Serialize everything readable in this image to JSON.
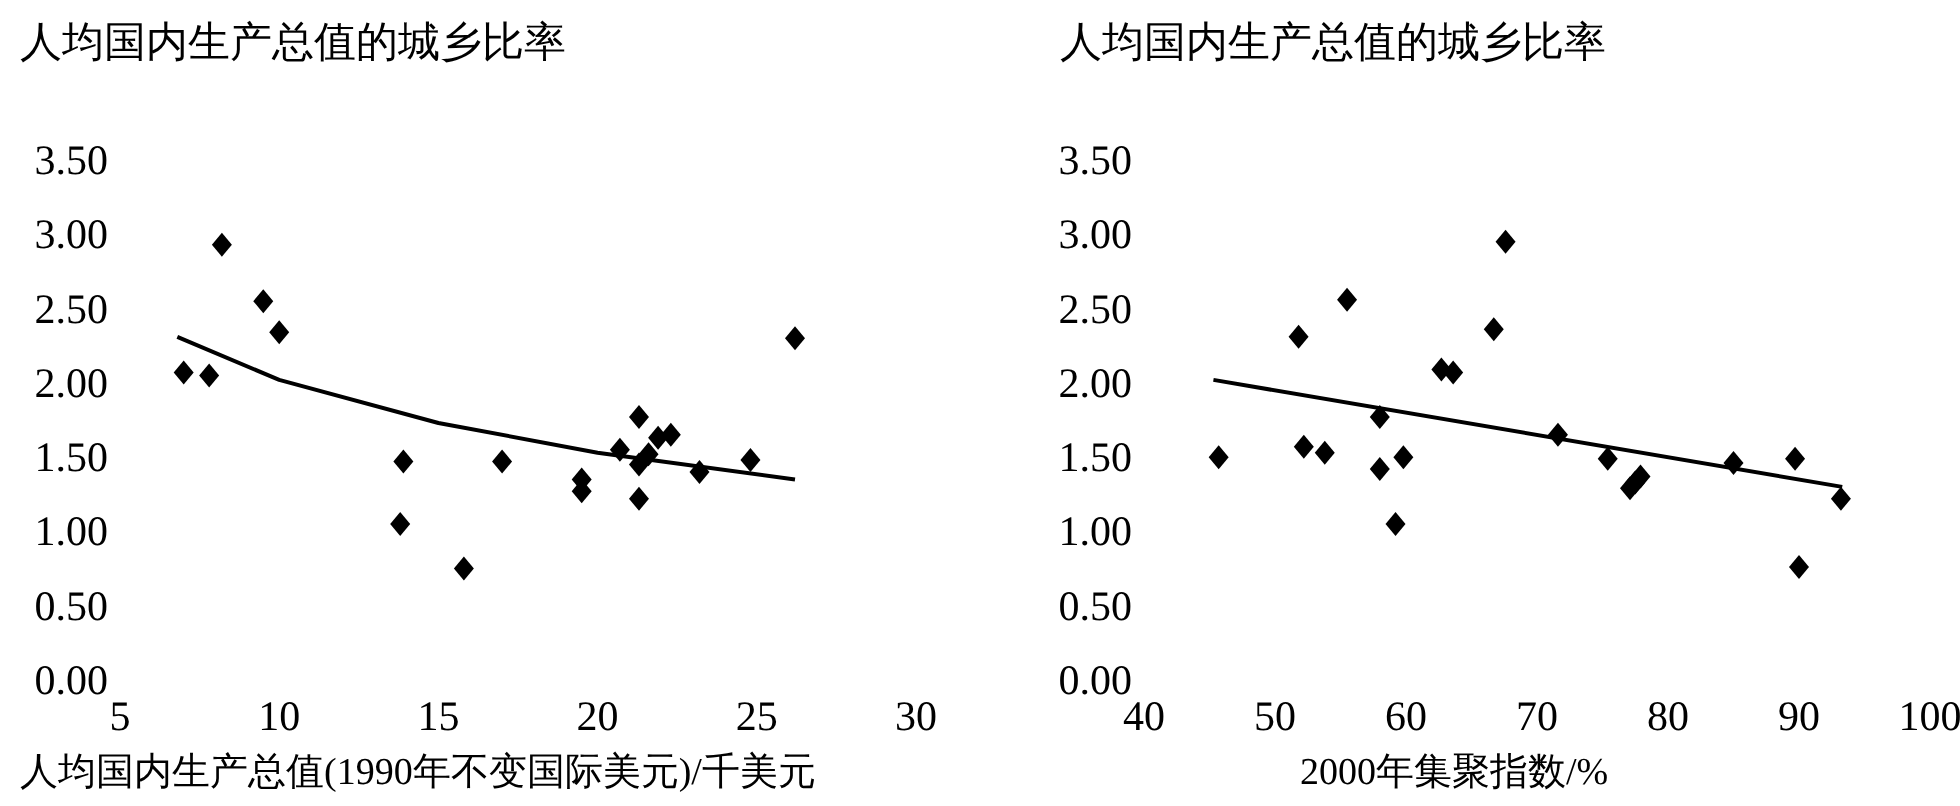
{
  "chart_data": [
    {
      "type": "scatter",
      "ylabel": "人均国内生产总值的城乡比率",
      "xlabel": "人均国内生产总值(1990年不变国际美元)/千美元",
      "xlim": [
        5,
        30
      ],
      "xticks": [
        5,
        10,
        15,
        20,
        25,
        30
      ],
      "ylim": [
        0,
        3.5
      ],
      "yticks": [
        {
          "value": 0,
          "label": "0.00"
        },
        {
          "value": 0.5,
          "label": "0.50"
        },
        {
          "value": 1,
          "label": "1.00"
        },
        {
          "value": 1.5,
          "label": "1.50"
        },
        {
          "value": 2,
          "label": "2.00"
        },
        {
          "value": 2.5,
          "label": "2.50"
        },
        {
          "value": 3,
          "label": "3.00"
        },
        {
          "value": 3.5,
          "label": "3.50"
        }
      ],
      "series": [
        {
          "marker": "diamond",
          "color": "#000000",
          "x": [
            7.0,
            7.8,
            8.2,
            9.5,
            10.0,
            13.8,
            13.9,
            15.8,
            17.0,
            19.5,
            19.5,
            20.7,
            21.3,
            21.3,
            21.3,
            21.6,
            21.9,
            22.3,
            23.2,
            24.8,
            26.2
          ],
          "values": [
            2.07,
            2.05,
            2.93,
            2.55,
            2.34,
            1.05,
            1.47,
            0.75,
            1.47,
            1.35,
            1.27,
            1.55,
            1.77,
            1.45,
            1.22,
            1.52,
            1.63,
            1.65,
            1.4,
            1.48,
            2.3
          ]
        },
        {
          "type": "line",
          "color": "#000000",
          "x": [
            6.8,
            10,
            15,
            20,
            26.2
          ],
          "values": [
            2.31,
            2.02,
            1.73,
            1.53,
            1.35
          ]
        }
      ]
    },
    {
      "type": "scatter",
      "ylabel": "人均国内生产总值的城乡比率",
      "xlabel": "2000年集聚指数/%",
      "xlim": [
        40,
        100
      ],
      "xticks": [
        40,
        50,
        60,
        70,
        80,
        90,
        100
      ],
      "ylim": [
        0,
        3.5
      ],
      "yticks": [
        {
          "value": 0,
          "label": "0.00"
        },
        {
          "value": 0.5,
          "label": "0.50"
        },
        {
          "value": 1,
          "label": "1.00"
        },
        {
          "value": 1.5,
          "label": "1.50"
        },
        {
          "value": 2,
          "label": "2.00"
        },
        {
          "value": 2.5,
          "label": "2.50"
        },
        {
          "value": 3,
          "label": "3.00"
        },
        {
          "value": 3.5,
          "label": "3.50"
        }
      ],
      "series": [
        {
          "marker": "diamond",
          "color": "#000000",
          "x": [
            45.7,
            51.8,
            52.2,
            53.8,
            55.5,
            58.0,
            58.0,
            59.2,
            59.8,
            62.7,
            63.6,
            66.7,
            67.6,
            71.6,
            75.4,
            77.1,
            77.5,
            77.9,
            85.0,
            89.7,
            90.0,
            93.2
          ],
          "values": [
            1.5,
            2.31,
            1.57,
            1.53,
            2.56,
            1.42,
            1.77,
            1.05,
            1.5,
            2.09,
            2.07,
            2.36,
            2.95,
            1.65,
            1.49,
            1.29,
            1.33,
            1.37,
            1.46,
            1.49,
            0.76,
            1.22
          ]
        },
        {
          "type": "line",
          "color": "#000000",
          "x": [
            45.3,
            93.3
          ],
          "values": [
            2.02,
            1.3
          ]
        }
      ]
    }
  ]
}
